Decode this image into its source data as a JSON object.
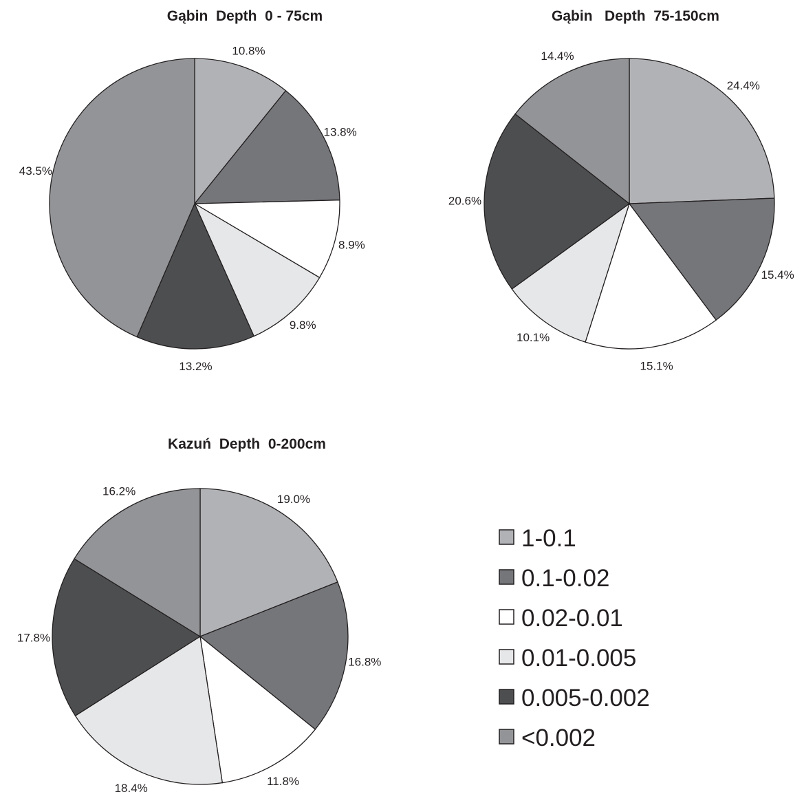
{
  "colors": {
    "1-0.1": "#b1b2b6",
    "0.1-0.02": "#75767a",
    "0.02-0.01": "#ffffff",
    "0.01-0.005": "#e6e7e8",
    "0.005-0.002": "#4d4e50",
    "<0.002": "#939497",
    "outline": "#231f20"
  },
  "chart_data": [
    {
      "type": "pie",
      "title": "Gąbin  Depth  0 - 75cm",
      "categories": [
        "1-0.1",
        "0.1-0.02",
        "0.02-0.01",
        "0.01-0.005",
        "0.005-0.002",
        "<0.002"
      ],
      "values": [
        10.8,
        13.8,
        8.9,
        9.8,
        13.2,
        43.5
      ],
      "labels": [
        "10.8%",
        "13.8%",
        "8.9%",
        "9.8%",
        "13.2%",
        "43.5%"
      ]
    },
    {
      "type": "pie",
      "title": "Gąbin   Depth  75-150cm",
      "categories": [
        "1-0.1",
        "0.1-0.02",
        "0.02-0.01",
        "0.01-0.005",
        "0.005-0.002",
        "<0.002"
      ],
      "values": [
        24.4,
        15.4,
        15.1,
        10.1,
        20.6,
        14.4
      ],
      "labels": [
        "24.4%",
        "15.4%",
        "15.1%",
        "10.1%",
        "20.6%",
        "14.4%"
      ]
    },
    {
      "type": "pie",
      "title": "Kazuń  Depth  0-200cm",
      "categories": [
        "1-0.1",
        "0.1-0.02",
        "0.02-0.01",
        "0.01-0.005",
        "0.005-0.002",
        "<0.002"
      ],
      "values": [
        19.0,
        16.8,
        11.8,
        18.4,
        17.8,
        16.2
      ],
      "labels": [
        "19.0%",
        "16.8%",
        "11.8%",
        "18.4%",
        "17.8%",
        "16.2%"
      ]
    }
  ],
  "legend": {
    "items": [
      "1-0.1",
      "0.1-0.02",
      "0.02-0.01",
      "0.01-0.005",
      "0.005-0.002",
      "<0.002"
    ]
  }
}
